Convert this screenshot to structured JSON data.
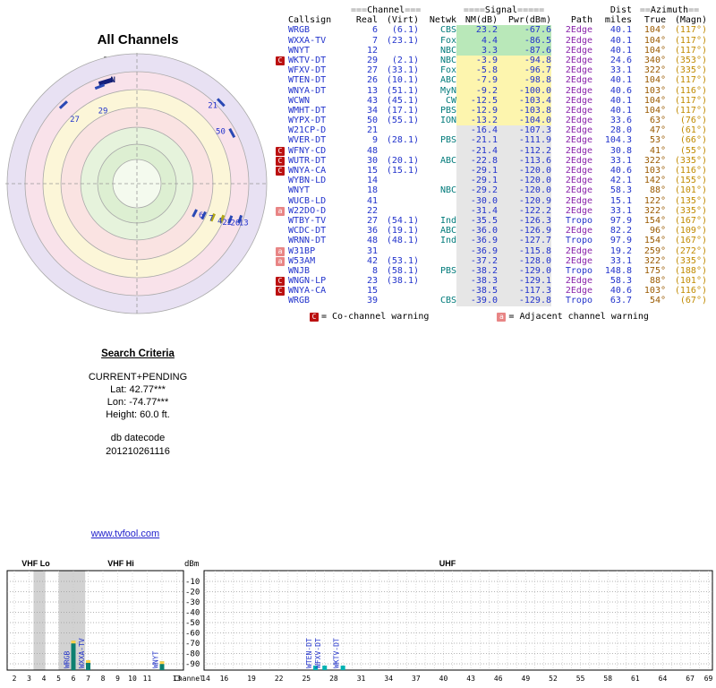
{
  "radar": {
    "title": "All Channels",
    "north_label": "TrueNorth"
  },
  "table": {
    "header": {
      "channel": {
        "pre": "===",
        "label": "Channel",
        "post": "==="
      },
      "signal": {
        "pre": "====",
        "label": "Signal",
        "post": "====="
      },
      "dist": "Dist",
      "azimuth": {
        "pre": "==",
        "label": "Azimuth",
        "post": "=="
      },
      "callsign": "Callsign",
      "real": "Real",
      "virt": "(Virt)",
      "netwk": "Netwk",
      "nm": "NM(dB)",
      "pwr": "Pwr(dBm)",
      "path": "Path",
      "miles": "miles",
      "true_az": "True",
      "magn": "(Magn)"
    },
    "rows": [
      {
        "callsign": "WRGB",
        "real": "6",
        "virt": "(6.1)",
        "netwk": "CBS",
        "nm": "23.2",
        "pwr": "-67.6",
        "path": "2Edge",
        "miles": "40.1",
        "true_az": "104°",
        "magn": "(117°)",
        "warn": "",
        "level": "green"
      },
      {
        "callsign": "WXXA-TV",
        "real": "7",
        "virt": "(23.1)",
        "netwk": "Fox",
        "nm": "4.4",
        "pwr": "-86.5",
        "path": "2Edge",
        "miles": "40.1",
        "true_az": "104°",
        "magn": "(117°)",
        "warn": "",
        "level": "green"
      },
      {
        "callsign": "WNYT",
        "real": "12",
        "virt": "",
        "netwk": "NBC",
        "nm": "3.3",
        "pwr": "-87.6",
        "path": "2Edge",
        "miles": "40.1",
        "true_az": "104°",
        "magn": "(117°)",
        "warn": "",
        "level": "green"
      },
      {
        "callsign": "WKTV-DT",
        "real": "29",
        "virt": "(2.1)",
        "netwk": "NBC",
        "nm": "-3.9",
        "pwr": "-94.8",
        "path": "2Edge",
        "miles": "24.6",
        "true_az": "340°",
        "magn": "(353°)",
        "warn": "C",
        "level": "yellow"
      },
      {
        "callsign": "WFXV-DT",
        "real": "27",
        "virt": "(33.1)",
        "netwk": "Fox",
        "nm": "-5.8",
        "pwr": "-96.7",
        "path": "2Edge",
        "miles": "33.1",
        "true_az": "322°",
        "magn": "(335°)",
        "warn": "",
        "level": "yellow"
      },
      {
        "callsign": "WTEN-DT",
        "real": "26",
        "virt": "(10.1)",
        "netwk": "ABC",
        "nm": "-7.9",
        "pwr": "-98.8",
        "path": "2Edge",
        "miles": "40.1",
        "true_az": "104°",
        "magn": "(117°)",
        "warn": "",
        "level": "yellow"
      },
      {
        "callsign": "WNYA-DT",
        "real": "13",
        "virt": "(51.1)",
        "netwk": "MyN",
        "nm": "-9.2",
        "pwr": "-100.0",
        "path": "2Edge",
        "miles": "40.6",
        "true_az": "103°",
        "magn": "(116°)",
        "warn": "",
        "level": "yellow"
      },
      {
        "callsign": "WCWN",
        "real": "43",
        "virt": "(45.1)",
        "netwk": "CW",
        "nm": "-12.5",
        "pwr": "-103.4",
        "path": "2Edge",
        "miles": "40.1",
        "true_az": "104°",
        "magn": "(117°)",
        "warn": "",
        "level": "yellow"
      },
      {
        "callsign": "WMHT-DT",
        "real": "34",
        "virt": "(17.1)",
        "netwk": "PBS",
        "nm": "-12.9",
        "pwr": "-103.8",
        "path": "2Edge",
        "miles": "40.1",
        "true_az": "104°",
        "magn": "(117°)",
        "warn": "",
        "level": "yellow"
      },
      {
        "callsign": "WYPX-DT",
        "real": "50",
        "virt": "(55.1)",
        "netwk": "ION",
        "nm": "-13.2",
        "pwr": "-104.0",
        "path": "2Edge",
        "miles": "33.6",
        "true_az": "63°",
        "magn": "(76°)",
        "warn": "",
        "level": "yellow"
      },
      {
        "callsign": "W21CP-D",
        "real": "21",
        "virt": "",
        "netwk": "",
        "nm": "-16.4",
        "pwr": "-107.3",
        "path": "2Edge",
        "miles": "28.0",
        "true_az": "47°",
        "magn": "(61°)",
        "warn": "",
        "level": "gray"
      },
      {
        "callsign": "WVER-DT",
        "real": "9",
        "virt": "(28.1)",
        "netwk": "PBS",
        "nm": "-21.1",
        "pwr": "-111.9",
        "path": "2Edge",
        "miles": "104.3",
        "true_az": "53°",
        "magn": "(66°)",
        "warn": "",
        "level": "gray"
      },
      {
        "callsign": "WFNY-CD",
        "real": "48",
        "virt": "",
        "netwk": "",
        "nm": "-21.4",
        "pwr": "-112.2",
        "path": "2Edge",
        "miles": "30.8",
        "true_az": "41°",
        "magn": "(55°)",
        "warn": "C",
        "level": "gray"
      },
      {
        "callsign": "WUTR-DT",
        "real": "30",
        "virt": "(20.1)",
        "netwk": "ABC",
        "nm": "-22.8",
        "pwr": "-113.6",
        "path": "2Edge",
        "miles": "33.1",
        "true_az": "322°",
        "magn": "(335°)",
        "warn": "C",
        "level": "gray"
      },
      {
        "callsign": "WNYA-CA",
        "real": "15",
        "virt": "(15.1)",
        "netwk": "",
        "nm": "-29.1",
        "pwr": "-120.0",
        "path": "2Edge",
        "miles": "40.6",
        "true_az": "103°",
        "magn": "(116°)",
        "warn": "C",
        "level": "gray"
      },
      {
        "callsign": "WYBN-LD",
        "real": "14",
        "virt": "",
        "netwk": "",
        "nm": "-29.1",
        "pwr": "-120.0",
        "path": "2Edge",
        "miles": "42.1",
        "true_az": "142°",
        "magn": "(155°)",
        "warn": "",
        "level": "gray"
      },
      {
        "callsign": "WNYT",
        "real": "18",
        "virt": "",
        "netwk": "NBC",
        "nm": "-29.2",
        "pwr": "-120.0",
        "path": "2Edge",
        "miles": "58.3",
        "true_az": "88°",
        "magn": "(101°)",
        "warn": "",
        "level": "gray"
      },
      {
        "callsign": "WUCB-LD",
        "real": "41",
        "virt": "",
        "netwk": "",
        "nm": "-30.0",
        "pwr": "-120.9",
        "path": "2Edge",
        "miles": "15.1",
        "true_az": "122°",
        "magn": "(135°)",
        "warn": "",
        "level": "gray"
      },
      {
        "callsign": "W22DO-D",
        "real": "22",
        "virt": "",
        "netwk": "",
        "nm": "-31.4",
        "pwr": "-122.2",
        "path": "2Edge",
        "miles": "33.1",
        "true_az": "322°",
        "magn": "(335°)",
        "warn": "a",
        "level": "gray"
      },
      {
        "callsign": "WTBY-TV",
        "real": "27",
        "virt": "(54.1)",
        "netwk": "Ind",
        "nm": "-35.5",
        "pwr": "-126.3",
        "path": "Tropo",
        "miles": "97.9",
        "true_az": "154°",
        "magn": "(167°)",
        "warn": "",
        "level": "gray"
      },
      {
        "callsign": "WCDC-DT",
        "real": "36",
        "virt": "(19.1)",
        "netwk": "ABC",
        "nm": "-36.0",
        "pwr": "-126.9",
        "path": "2Edge",
        "miles": "82.2",
        "true_az": "96°",
        "magn": "(109°)",
        "warn": "",
        "level": "gray"
      },
      {
        "callsign": "WRNN-DT",
        "real": "48",
        "virt": "(48.1)",
        "netwk": "Ind",
        "nm": "-36.9",
        "pwr": "-127.7",
        "path": "Tropo",
        "miles": "97.9",
        "true_az": "154°",
        "magn": "(167°)",
        "warn": "",
        "level": "gray"
      },
      {
        "callsign": "W31BP",
        "real": "31",
        "virt": "",
        "netwk": "",
        "nm": "-36.9",
        "pwr": "-115.8",
        "path": "2Edge",
        "miles": "19.2",
        "true_az": "259°",
        "magn": "(272°)",
        "warn": "a",
        "level": "gray"
      },
      {
        "callsign": "W53AM",
        "real": "42",
        "virt": "(53.1)",
        "netwk": "",
        "nm": "-37.2",
        "pwr": "-128.0",
        "path": "2Edge",
        "miles": "33.1",
        "true_az": "322°",
        "magn": "(335°)",
        "warn": "a",
        "level": "gray"
      },
      {
        "callsign": "WNJB",
        "real": "8",
        "virt": "(58.1)",
        "netwk": "PBS",
        "nm": "-38.2",
        "pwr": "-129.0",
        "path": "Tropo",
        "miles": "148.8",
        "true_az": "175°",
        "magn": "(188°)",
        "warn": "",
        "level": "gray"
      },
      {
        "callsign": "WNGN-LP",
        "real": "23",
        "virt": "(38.1)",
        "netwk": "",
        "nm": "-38.3",
        "pwr": "-129.1",
        "path": "2Edge",
        "miles": "58.3",
        "true_az": "88°",
        "magn": "(101°)",
        "warn": "C",
        "level": "gray"
      },
      {
        "callsign": "WNYA-CA",
        "real": "15",
        "virt": "",
        "netwk": "",
        "nm": "-38.5",
        "pwr": "-117.3",
        "path": "2Edge",
        "miles": "40.6",
        "true_az": "103°",
        "magn": "(116°)",
        "warn": "C",
        "level": "gray"
      },
      {
        "callsign": "WRGB",
        "real": "39",
        "virt": "",
        "netwk": "CBS",
        "nm": "-39.0",
        "pwr": "-129.8",
        "path": "Tropo",
        "miles": "63.7",
        "true_az": "54°",
        "magn": "(67°)",
        "warn": "",
        "level": "gray"
      }
    ]
  },
  "legend": {
    "co": {
      "badge": "C",
      "text": "= Co-channel warning"
    },
    "adj": {
      "badge": "a",
      "text": "= Adjacent channel warning"
    }
  },
  "search": {
    "title": "Search Criteria",
    "mode": "CURRENT+PENDING",
    "lat": "Lat: 42.77***",
    "lon": "Lon: -74.77***",
    "height": "Height: 60.0 ft.",
    "datecode_label": "db datecode",
    "datecode": "201210261116"
  },
  "link": "www.tvfool.com",
  "colors": {
    "callsign_blue": "#2233cc",
    "network_teal": "#007a7a",
    "path_2edge": "#8822aa",
    "path_tropo": "#2233cc",
    "azimuth_true": "#9a5a00",
    "azimuth_magn": "#c08a00",
    "level_green": "#b9e8b9",
    "level_yellow": "#fdf5ae",
    "level_gray": "#e6e6e6",
    "co_warning": "#bb1111",
    "adjacent_warning": "#e88585",
    "bar_teal": "#0d8070",
    "bar_cyan": "#00b2b2",
    "bar_cap": "#ffd24a"
  },
  "chart_data": [
    {
      "type": "radar",
      "title": "All Channels",
      "orientation_label": "TrueNorth",
      "rings_rf": [
        1.0,
        0.862,
        0.724,
        0.586,
        0.434,
        0.303,
        0.186
      ],
      "band_colors": [
        "#e8e1f3",
        "#f9e2ea",
        "#fcf6d8",
        "#fae3e2",
        "#e6f3dc",
        "#ddefd2",
        "#f4faee"
      ],
      "ticks": [
        {
          "az": 343,
          "rf": 0.82,
          "len": 16,
          "w": 5,
          "color": "#16207c"
        },
        {
          "az": 339,
          "rf": 0.8,
          "len": 11,
          "w": 3,
          "color": "#2a49b4"
        },
        {
          "az": 317,
          "rf": 0.83,
          "len": 11,
          "w": 3,
          "color": "#2a49b4"
        },
        {
          "az": 46,
          "rf": 0.9,
          "len": 11,
          "w": 3,
          "color": "#2a49b4"
        },
        {
          "az": 62,
          "rf": 0.83,
          "len": 11,
          "w": 3,
          "color": "#2a49b4"
        },
        {
          "az": 117,
          "rf": 0.5,
          "len": 9,
          "w": 3,
          "color": "#2a49b4"
        },
        {
          "az": 115.5,
          "rf": 0.57,
          "len": 9,
          "w": 3,
          "color": "#2a49b4"
        },
        {
          "az": 114,
          "rf": 0.64,
          "len": 9,
          "w": 3,
          "color": "#b0a515"
        },
        {
          "az": 112.5,
          "rf": 0.71,
          "len": 9,
          "w": 3,
          "color": "#b0a515"
        },
        {
          "az": 111,
          "rf": 0.77,
          "len": 9,
          "w": 3,
          "color": "#2a49b4"
        },
        {
          "az": 109,
          "rf": 0.84,
          "len": 9,
          "w": 3,
          "color": "#2a49b4"
        }
      ],
      "labels": [
        {
          "text": "N",
          "az": 347,
          "rf": 0.82,
          "color": "#101c6e",
          "bold": true
        },
        {
          "text": "29",
          "az": 335,
          "rf": 0.62
        },
        {
          "text": "27",
          "az": 316,
          "rf": 0.69
        },
        {
          "text": "21",
          "az": 44,
          "rf": 0.84
        },
        {
          "text": "50",
          "az": 58,
          "rf": 0.76
        },
        {
          "text": "6",
          "az": 116,
          "rf": 0.55
        },
        {
          "text": "7",
          "az": 115,
          "rf": 0.63
        },
        {
          "text": "4",
          "az": 114,
          "rf": 0.7
        },
        {
          "text": "22",
          "az": 113,
          "rf": 0.755
        },
        {
          "text": "26",
          "az": 111.5,
          "rf": 0.815
        },
        {
          "text": "13",
          "az": 110,
          "rf": 0.875
        }
      ]
    },
    {
      "type": "bar",
      "band_labels": [
        "VHF Lo",
        "VHF Hi",
        "UHF"
      ],
      "ylabel": "dBm",
      "yticks": [
        -10,
        -20,
        -30,
        -40,
        -50,
        -60,
        -70,
        -80,
        -90
      ],
      "ylim": [
        -10,
        -96
      ],
      "xlabel": "Channel",
      "vhf_ticks": [
        2,
        3,
        4,
        5,
        6,
        7,
        8,
        9,
        10,
        11,
        13
      ],
      "uhf_ticks": [
        14,
        16,
        19,
        22,
        25,
        28,
        31,
        34,
        37,
        40,
        43,
        46,
        49,
        52,
        55,
        58,
        61,
        64,
        67,
        69
      ],
      "gray_bands_channels": [
        [
          3.3,
          4.1
        ],
        [
          5.0,
          6.8
        ]
      ],
      "bars": [
        {
          "callsign": "WRGB",
          "channel": 6,
          "pwr_dbm": -67.6
        },
        {
          "callsign": "WXXA-TV",
          "channel": 7,
          "pwr_dbm": -86.5
        },
        {
          "callsign": "WNYT",
          "channel": 12,
          "pwr_dbm": -87.6
        },
        {
          "callsign": "WTEN-DT",
          "channel": 26,
          "pwr_dbm": -98.8
        },
        {
          "callsign": "WFXV-DT",
          "channel": 27,
          "pwr_dbm": -96.7
        },
        {
          "callsign": "WKTV-DT",
          "channel": 29,
          "pwr_dbm": -94.8
        }
      ]
    }
  ]
}
